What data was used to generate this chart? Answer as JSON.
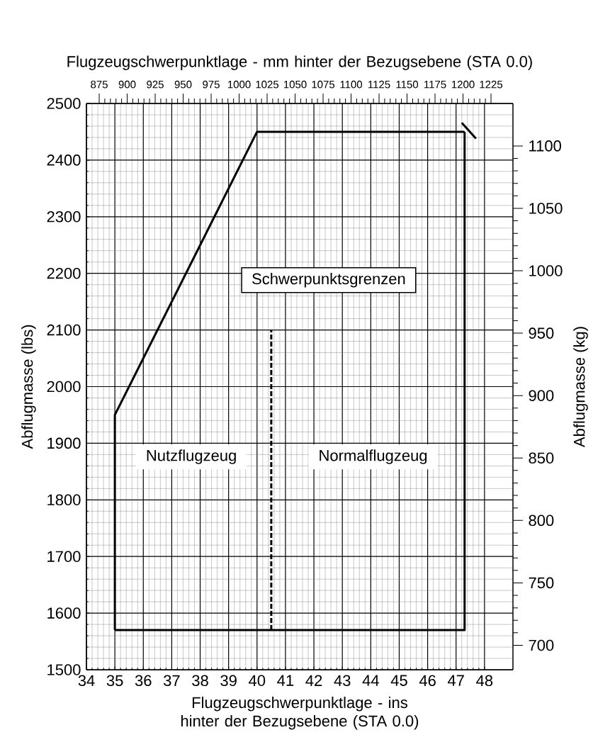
{
  "chart_data": {
    "type": "line",
    "x2label": "Flugzeugschwerpunktlage - mm hinter der Bezugsebene (STA 0.0)",
    "xlabel": "Flugzeugschwerpunktlage - ins hinter der Bezugsebene (STA 0.0)",
    "ylabel": "Abflugmasse (lbs)",
    "y2label": "Abflugmasse (kg)",
    "annotations": [
      "Schwerpunktsgrenzen",
      "Nutzflugzeug",
      "Normalflugzeug"
    ],
    "series": [
      {
        "color": "#000000",
        "line_style": "solid",
        "x": [
          35,
          35,
          40,
          47.3
        ],
        "values": [
          1570,
          1950,
          2450,
          2450
        ]
      },
      {
        "color": "#000000",
        "line_style": "solid",
        "x": [
          47.3,
          47.3,
          35
        ],
        "values": [
          2450,
          1570,
          1570
        ]
      },
      {
        "color": "#000000",
        "line_style": "dashed",
        "x": [
          40.5,
          40.5
        ],
        "values": [
          1570,
          2100
        ]
      },
      {
        "color": "#000000",
        "line_style": "solid",
        "x": [
          47.2,
          47.7
        ],
        "values": [
          2466,
          2438
        ]
      }
    ],
    "xlim": [
      34,
      49
    ],
    "xticks": [
      34,
      35,
      36,
      37,
      38,
      39,
      40,
      41,
      42,
      43,
      44,
      45,
      46,
      47,
      48
    ],
    "ylim": [
      1500,
      2500
    ],
    "yticks": [
      1500,
      1600,
      1700,
      1800,
      1900,
      2000,
      2100,
      2200,
      2300,
      2400,
      2500
    ],
    "x2lim": [
      863.6,
      1244.6
    ],
    "x2ticks": [
      875,
      900,
      925,
      950,
      975,
      1000,
      1025,
      1050,
      1075,
      1100,
      1125,
      1150,
      1175,
      1200,
      1225
    ],
    "y2lim": [
      680.4,
      1134
    ],
    "y2ticks": [
      700,
      750,
      800,
      850,
      900,
      950,
      1000,
      1050,
      1100
    ],
    "grid": true,
    "marker": "none"
  }
}
